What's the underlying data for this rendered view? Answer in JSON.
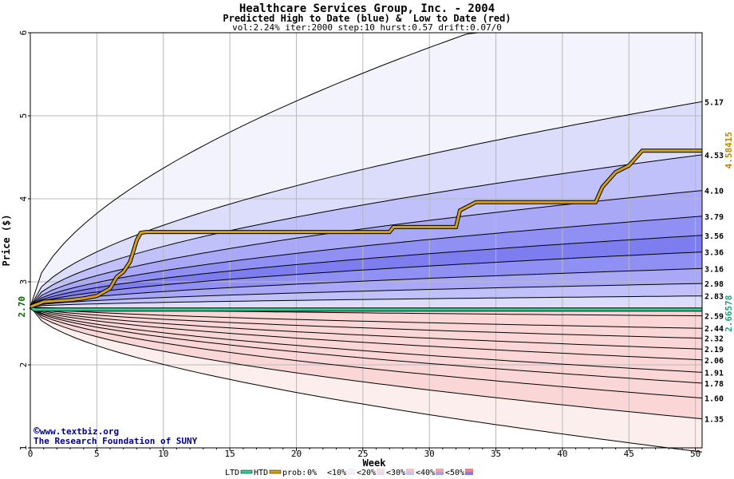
{
  "chart_data": {
    "type": "area",
    "title": "Healthcare Services Group, Inc. - 2004",
    "subtitle": "Predicted High to Date (blue) &  Low to Date (red)",
    "params": "vol:2.24% iter:2000 step:10 hurst:0.57 drift:0.07/0",
    "xlabel": "Week",
    "ylabel": "Price ($)",
    "xlim": [
      0,
      50.5
    ],
    "ylim": [
      1,
      6
    ],
    "x_ticks": [
      "0",
      "5",
      "10",
      "15",
      "20",
      "25",
      "30",
      "35",
      "40",
      "45",
      "50"
    ],
    "y_ticks": [
      "1",
      "2",
      "3",
      "4",
      "5",
      "6"
    ],
    "start_price": "2.70",
    "grid": true,
    "high_quantile_ends": [
      "5.17",
      "4.53",
      "4.10",
      "3.79",
      "3.56",
      "3.36",
      "3.16",
      "2.98",
      "2.83"
    ],
    "low_quantile_ends": [
      "2.59",
      "2.44",
      "2.32",
      "2.19",
      "2.06",
      "1.91",
      "1.78",
      "1.60",
      "1.35"
    ],
    "high_outer_end": 6.9,
    "low_outer_end": 0.95,
    "htd_final_label": "4.58415",
    "ltd_final_label": "2.66578",
    "htd": [
      [
        0,
        2.7
      ],
      [
        1,
        2.76
      ],
      [
        2,
        2.77
      ],
      [
        3,
        2.78
      ],
      [
        4,
        2.8
      ],
      [
        5,
        2.83
      ],
      [
        6,
        2.92
      ],
      [
        6.5,
        3.06
      ],
      [
        7,
        3.12
      ],
      [
        7.5,
        3.24
      ],
      [
        8,
        3.5
      ],
      [
        8.3,
        3.59
      ],
      [
        8.7,
        3.6
      ],
      [
        12,
        3.6
      ],
      [
        27,
        3.6
      ],
      [
        27.3,
        3.66
      ],
      [
        32,
        3.66
      ],
      [
        32.3,
        3.86
      ],
      [
        33.5,
        3.96
      ],
      [
        42.5,
        3.96
      ],
      [
        43,
        4.14
      ],
      [
        44,
        4.32
      ],
      [
        45,
        4.4
      ],
      [
        46,
        4.58
      ],
      [
        50.5,
        4.58
      ]
    ],
    "ltd": [
      [
        0,
        2.7
      ],
      [
        0.3,
        2.666
      ],
      [
        50.5,
        2.666
      ]
    ],
    "legend": {
      "ltd": "LTD",
      "htd": "HTD",
      "prob_prefix": "prob:",
      "items": [
        "0%",
        "<10%",
        "<20%",
        "<30%",
        "<40%",
        "<50%"
      ]
    },
    "colors": {
      "blue_bands": [
        "#f3f3fe",
        "#dcdcfb",
        "#c0c0fa",
        "#a8a8f7",
        "#8f8ff4",
        "#7d7df0"
      ],
      "red_bands": [
        "#fdeeee",
        "#fbd6d6",
        "#fbbbbb",
        "#f9a4a4",
        "#f88e8e",
        "#f57f7f"
      ],
      "htd": "#d4a01c",
      "ltd": "#2ecf9f",
      "grid": "#b8b8b8",
      "credit": "#00008b"
    }
  },
  "credit": {
    "line1": "www.textbiz.org",
    "line2": "The Research Foundation of SUNY",
    "symbol": "©"
  }
}
